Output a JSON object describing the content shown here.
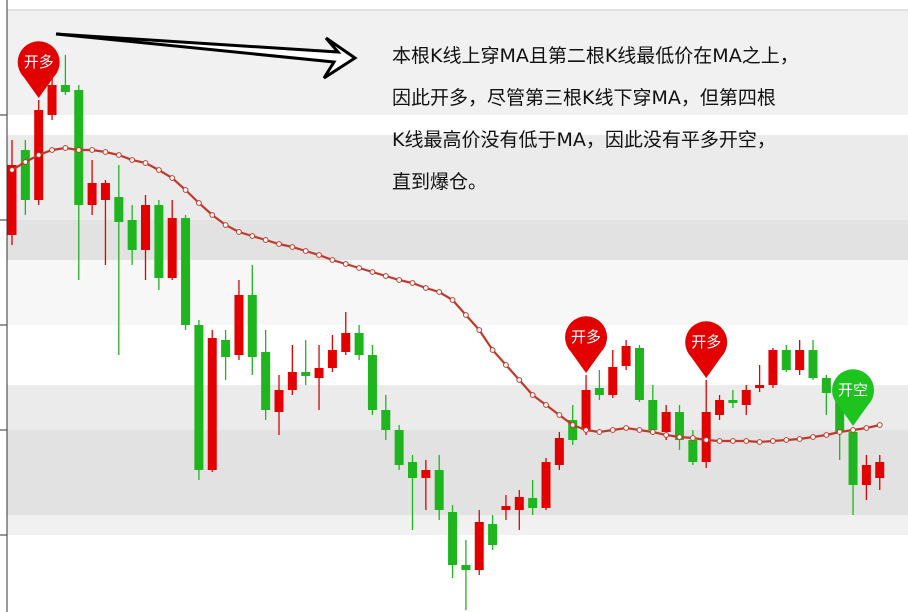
{
  "chart_data": {
    "type": "candlestick",
    "ylim": [
      0,
      612
    ],
    "yticks": [
      497,
      392,
      287,
      182,
      77
    ],
    "up_color": "#e30000",
    "down_color": "#1fb51f",
    "open": [
      377,
      462,
      412,
      497,
      527,
      522,
      407,
      412,
      415,
      392,
      362,
      407,
      334,
      394,
      287,
      142,
      272,
      257,
      317,
      260,
      200,
      222,
      240,
      234,
      244,
      260,
      279,
      257,
      202,
      182,
      150,
      134,
      142,
      100,
      47,
      42,
      88,
      102,
      102,
      114,
      104,
      147,
      192,
      182,
      224,
      217,
      246,
      264,
      212,
      180,
      200,
      172,
      150,
      197,
      212,
      207,
      224,
      227,
      262,
      242,
      262,
      234,
      220,
      180,
      127,
      134
    ],
    "close": [
      447,
      412,
      502,
      527,
      520,
      407,
      429,
      429,
      390,
      362,
      407,
      334,
      394,
      287,
      142,
      274,
      255,
      317,
      255,
      202,
      222,
      240,
      236,
      244,
      262,
      279,
      257,
      202,
      182,
      147,
      134,
      142,
      102,
      47,
      42,
      90,
      67,
      106,
      115,
      104,
      150,
      174,
      172,
      222,
      217,
      245,
      266,
      212,
      182,
      200,
      172,
      150,
      200,
      212,
      209,
      222,
      227,
      262,
      242,
      262,
      234,
      219,
      180,
      127,
      147,
      150
    ],
    "high": [
      472,
      472,
      512,
      552,
      557,
      527,
      452,
      432,
      447,
      407,
      417,
      412,
      412,
      397,
      292,
      282,
      282,
      332,
      347,
      282,
      237,
      267,
      272,
      267,
      277,
      300,
      287,
      267,
      217,
      187,
      157,
      152,
      157,
      107,
      72,
      102,
      97,
      117,
      122,
      132,
      154,
      180,
      207,
      237,
      242,
      262,
      272,
      267,
      227,
      207,
      207,
      182,
      232,
      217,
      222,
      227,
      247,
      264,
      267,
      272,
      272,
      237,
      227,
      184,
      157,
      157
    ],
    "low": [
      367,
      397,
      407,
      492,
      517,
      332,
      397,
      347,
      257,
      347,
      332,
      322,
      332,
      282,
      132,
      140,
      232,
      252,
      237,
      192,
      177,
      217,
      227,
      202,
      240,
      257,
      252,
      197,
      172,
      142,
      82,
      102,
      92,
      34,
      2,
      37,
      62,
      92,
      82,
      97,
      102,
      142,
      167,
      177,
      212,
      214,
      242,
      210,
      177,
      172,
      162,
      147,
      144,
      192,
      204,
      197,
      220,
      224,
      240,
      237,
      232,
      197,
      152,
      97,
      112,
      122
    ],
    "ma": {
      "name": "MA",
      "color": "#c0392b",
      "values": [
        442,
        450,
        457,
        462,
        464,
        462,
        462,
        460,
        457,
        452,
        449,
        442,
        434,
        422,
        409,
        397,
        387,
        380,
        376,
        372,
        368,
        365,
        361,
        357,
        352,
        348,
        344,
        340,
        336,
        332,
        329,
        324,
        320,
        312,
        297,
        282,
        262,
        247,
        232,
        217,
        207,
        197,
        187,
        182,
        180,
        182,
        184,
        182,
        180,
        177,
        175,
        174,
        172,
        171,
        171,
        171,
        170,
        171,
        172,
        173,
        175,
        177,
        180,
        182,
        184,
        187
      ]
    },
    "signals": [
      null,
      null,
      "开多",
      null,
      null,
      null,
      null,
      null,
      null,
      null,
      null,
      null,
      null,
      null,
      null,
      null,
      null,
      null,
      null,
      null,
      null,
      null,
      null,
      null,
      null,
      null,
      null,
      null,
      null,
      null,
      null,
      null,
      null,
      null,
      null,
      null,
      null,
      null,
      null,
      null,
      null,
      null,
      null,
      "开多",
      null,
      null,
      null,
      null,
      null,
      null,
      null,
      null,
      "开多",
      null,
      null,
      null,
      null,
      null,
      null,
      null,
      null,
      null,
      null,
      "开空",
      null,
      null
    ],
    "annotation": [
      "本根K线上穿MA且第二根K线最低价在MA之上，",
      "因此开多，尽管第三根K线下穿MA，但第四根",
      "K线最高价没有低于MA，因此没有平多开空，",
      "直到爆仓。"
    ]
  }
}
